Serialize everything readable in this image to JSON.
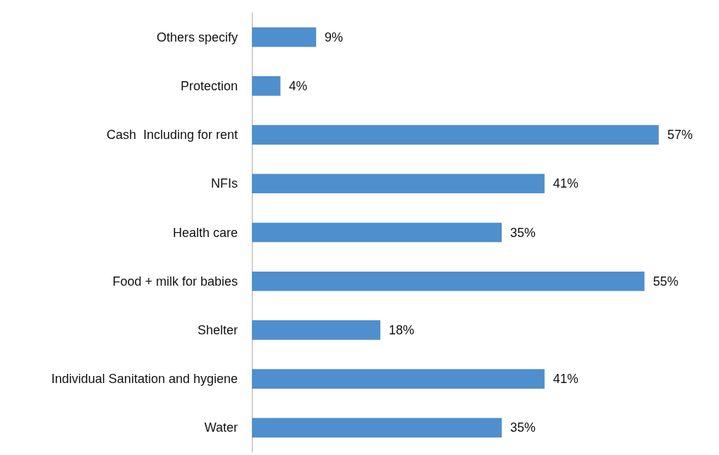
{
  "chart_data": {
    "type": "bar",
    "orientation": "horizontal",
    "categories": [
      "Others specify",
      "Protection",
      "Cash  Including for rent",
      "NFIs",
      "Health care",
      "Food + milk for babies",
      "Shelter",
      "Individual Sanitation and hygiene",
      "Water"
    ],
    "values": [
      9,
      4,
      57,
      41,
      35,
      55,
      18,
      41,
      35
    ],
    "value_labels": [
      "9%",
      "4%",
      "57%",
      "41%",
      "35%",
      "55%",
      "18%",
      "41%",
      "35%"
    ],
    "color": "#4f8fcd"
  }
}
